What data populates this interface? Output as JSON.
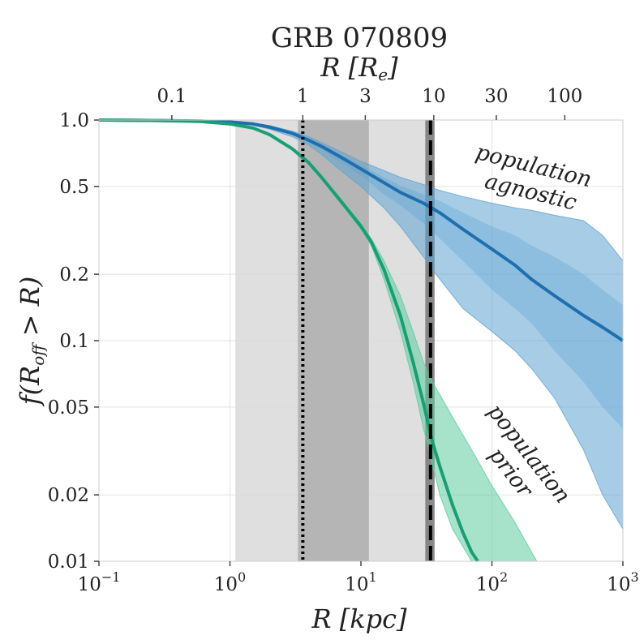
{
  "chart_data": {
    "type": "line",
    "title": "GRB 070809",
    "xlabel": "R [kpc]",
    "ylabel": "f(R_off > R)",
    "top_xlabel": "R [R_e]",
    "xscale": "log",
    "yscale": "log",
    "xlim": [
      0.1,
      1000
    ],
    "ylim": [
      0.01,
      1.0
    ],
    "x_ticks": [
      {
        "value": 0.1,
        "base": "10",
        "exp": "−1"
      },
      {
        "value": 1,
        "base": "10",
        "exp": "0"
      },
      {
        "value": 10,
        "base": "10",
        "exp": "1"
      },
      {
        "value": 100,
        "base": "10",
        "exp": "2"
      },
      {
        "value": 1000,
        "base": "10",
        "exp": "3"
      }
    ],
    "y_ticks": [
      {
        "value": 1.0,
        "label": "1.0"
      },
      {
        "value": 0.5,
        "label": "0.5"
      },
      {
        "value": 0.2,
        "label": "0.2"
      },
      {
        "value": 0.1,
        "label": "0.1"
      },
      {
        "value": 0.05,
        "label": "0.05"
      },
      {
        "value": 0.02,
        "label": "0.02"
      },
      {
        "value": 0.01,
        "label": "0.01"
      }
    ],
    "top_ticks": [
      {
        "label": "0.1",
        "x_kpc": 0.36
      },
      {
        "label": "1",
        "x_kpc": 3.6
      },
      {
        "label": "3",
        "x_kpc": 10.8
      },
      {
        "label": "10",
        "x_kpc": 36
      },
      {
        "label": "30",
        "x_kpc": 108
      },
      {
        "label": "100",
        "x_kpc": 360
      }
    ],
    "shaded_regions": [
      {
        "x0": 1.1,
        "x1": 34,
        "color": "#d9d9d9"
      },
      {
        "x0": 3.3,
        "x1": 11.5,
        "color": "#aeaeae"
      },
      {
        "x0": 31,
        "x1": 36.5,
        "color": "#777777"
      }
    ],
    "vlines": [
      {
        "x": 3.6,
        "style": "dotted",
        "color": "#000000"
      },
      {
        "x": 34,
        "style": "dashed",
        "color": "#000000"
      }
    ],
    "series": [
      {
        "color": "#1f6fae",
        "fill": "#5fa2d2",
        "x": [
          0.1,
          0.3,
          0.6,
          1,
          1.5,
          2,
          3,
          4,
          5,
          7,
          10,
          15,
          20,
          30,
          40,
          60,
          100,
          150,
          200,
          300,
          500,
          700,
          1000
        ],
        "y": [
          1.0,
          0.995,
          0.99,
          0.98,
          0.96,
          0.93,
          0.87,
          0.81,
          0.76,
          0.68,
          0.6,
          0.52,
          0.47,
          0.42,
          0.38,
          0.32,
          0.26,
          0.22,
          0.19,
          0.16,
          0.13,
          0.115,
          0.1
        ],
        "band_outer": {
          "upper": [
            1.0,
            0.998,
            0.993,
            0.985,
            0.97,
            0.945,
            0.89,
            0.84,
            0.79,
            0.72,
            0.65,
            0.59,
            0.55,
            0.51,
            0.48,
            0.45,
            0.42,
            0.4,
            0.39,
            0.37,
            0.35,
            0.3,
            0.23
          ],
          "lower": [
            1.0,
            0.99,
            0.985,
            0.97,
            0.95,
            0.91,
            0.84,
            0.77,
            0.7,
            0.59,
            0.5,
            0.4,
            0.33,
            0.24,
            0.19,
            0.14,
            0.11,
            0.09,
            0.075,
            0.055,
            0.032,
            0.02,
            0.014
          ]
        },
        "band_inner": {
          "upper": [
            1.0,
            0.996,
            0.991,
            0.982,
            0.965,
            0.94,
            0.88,
            0.825,
            0.775,
            0.7,
            0.625,
            0.55,
            0.505,
            0.46,
            0.43,
            0.38,
            0.33,
            0.3,
            0.27,
            0.24,
            0.2,
            0.17,
            0.145
          ],
          "lower": [
            1.0,
            0.994,
            0.988,
            0.975,
            0.955,
            0.92,
            0.86,
            0.79,
            0.735,
            0.64,
            0.56,
            0.46,
            0.41,
            0.34,
            0.29,
            0.23,
            0.17,
            0.14,
            0.12,
            0.09,
            0.065,
            0.05,
            0.04
          ]
        }
      },
      {
        "color": "#1a9e74",
        "fill": "#5fcaa0",
        "x": [
          0.1,
          0.3,
          0.6,
          1,
          1.5,
          2,
          3,
          4,
          5,
          7,
          10,
          12,
          15,
          20,
          25,
          30,
          35,
          40,
          50,
          60,
          70,
          78
        ],
        "y": [
          1.0,
          0.995,
          0.985,
          0.96,
          0.92,
          0.86,
          0.74,
          0.64,
          0.55,
          0.43,
          0.33,
          0.28,
          0.21,
          0.13,
          0.08,
          0.052,
          0.035,
          0.027,
          0.018,
          0.0135,
          0.011,
          0.01
        ],
        "band_outer": {
          "x": [
            0.1,
            0.3,
            0.6,
            1,
            1.5,
            2,
            3,
            4,
            5,
            7,
            10,
            12,
            15,
            20,
            25,
            30,
            35,
            40,
            50,
            70,
            100,
            150,
            220
          ],
          "upper": [
            1.0,
            0.997,
            0.99,
            0.965,
            0.93,
            0.87,
            0.75,
            0.65,
            0.56,
            0.44,
            0.34,
            0.29,
            0.23,
            0.16,
            0.11,
            0.08,
            0.065,
            0.057,
            0.045,
            0.032,
            0.022,
            0.015,
            0.01
          ],
          "lower": [
            1.0,
            0.993,
            0.98,
            0.955,
            0.91,
            0.85,
            0.73,
            0.63,
            0.54,
            0.42,
            0.32,
            0.27,
            0.19,
            0.11,
            0.065,
            0.04,
            0.028,
            0.02,
            0.014,
            0.01,
            0.01,
            0.01,
            0.01
          ]
        }
      }
    ],
    "annotations": [
      {
        "line1": "population",
        "line2": "agnostic"
      },
      {
        "line1": "population",
        "line2": "prior"
      }
    ]
  }
}
